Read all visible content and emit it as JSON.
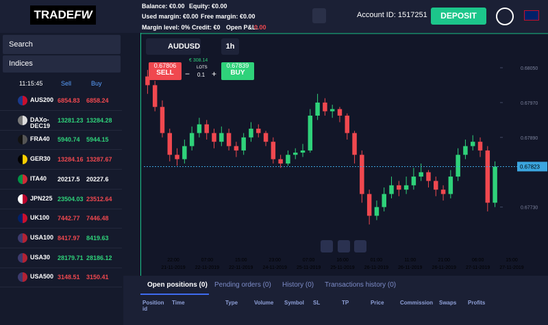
{
  "header": {
    "logo": "TRADE",
    "logo_accent": "FW",
    "balance": "Balance: €0.00",
    "equity": "Equity: €0.00",
    "used_margin": "Used margin: €0.00",
    "free_margin": "Free margin: €0.00",
    "margin_level": "Margin level: 0%",
    "credit": "Credit: €0",
    "open_pl": "Open P&L:",
    "open_pl_value": "0.00",
    "account": "Account ID: 1517251",
    "deposit": "DEPOSIT"
  },
  "sidebar": {
    "search": "Search",
    "category": "Indices",
    "clock": "11:15:45",
    "sell": "Sell",
    "buy": "Buy",
    "instruments": [
      {
        "name": "AUS200",
        "sell": "6854.83",
        "buy": "6858.24",
        "sell_color": "#f0484f",
        "buy_color": "#f0484f",
        "flag": [
          "#1a3a8c",
          "#c8102e"
        ]
      },
      {
        "name": "DAXo-DEC19",
        "sell": "13281.23",
        "buy": "13284.28",
        "sell_color": "#2fd27a",
        "buy_color": "#2fd27a",
        "flag": [
          "#777",
          "#ddd"
        ]
      },
      {
        "name": "FRA40",
        "sell": "5940.74",
        "buy": "5944.15",
        "sell_color": "#2fd27a",
        "buy_color": "#2fd27a",
        "flag": [
          "#111",
          "#555"
        ]
      },
      {
        "name": "GER30",
        "sell": "13284.16",
        "buy": "13287.67",
        "sell_color": "#f0484f",
        "buy_color": "#f0484f",
        "flag": [
          "#000",
          "#ffce00"
        ]
      },
      {
        "name": "ITA40",
        "sell": "20217.5",
        "buy": "20227.6",
        "sell_color": "#ffffff",
        "buy_color": "#ffffff",
        "flag": [
          "#009246",
          "#ce2b37"
        ]
      },
      {
        "name": "JPN225",
        "sell": "23504.03",
        "buy": "23512.64",
        "sell_color": "#2fd27a",
        "buy_color": "#f0484f",
        "flag": [
          "#ffffff",
          "#bc002d"
        ]
      },
      {
        "name": "UK100",
        "sell": "7442.77",
        "buy": "7446.48",
        "sell_color": "#f0484f",
        "buy_color": "#f0484f",
        "flag": [
          "#012169",
          "#c8102e"
        ]
      },
      {
        "name": "USA100",
        "sell": "8417.97",
        "buy": "8419.63",
        "sell_color": "#f0484f",
        "buy_color": "#2fd27a",
        "flag": [
          "#3c3b6e",
          "#b22234"
        ]
      },
      {
        "name": "USA30",
        "sell": "28179.71",
        "buy": "28186.12",
        "sell_color": "#2fd27a",
        "buy_color": "#2fd27a",
        "flag": [
          "#3c3b6e",
          "#b22234"
        ]
      },
      {
        "name": "USA500",
        "sell": "3148.51",
        "buy": "3150.41",
        "sell_color": "#f0484f",
        "buy_color": "#f0484f",
        "flag": [
          "#3c3b6e",
          "#b22234"
        ]
      }
    ]
  },
  "toolbar": {
    "symbol": "AUDUSD",
    "timeframe": "1h",
    "sell_price": "0.67806",
    "sell": "SELL",
    "margin": "€ 308.14",
    "lots": "LOTS",
    "lot_value": "0.1",
    "buy_price": "0.67839",
    "buy": "BUY"
  },
  "chart_data": {
    "type": "candlestick",
    "up_color": "#2fd27a",
    "down_color": "#f0484f",
    "ylim": [
      0.67621,
      0.68127
    ],
    "yticks": [
      {
        "value": 0.6805,
        "label": "0.68050"
      },
      {
        "value": 0.6797,
        "label": "0.67970"
      },
      {
        "value": 0.6789,
        "label": "0.67890"
      },
      {
        "value": 0.6773,
        "label": "0.67730"
      }
    ],
    "current": 0.67823,
    "x": [
      {
        "time": "22:00",
        "date": "21-11-2019"
      },
      {
        "time": "07:00",
        "date": "22-11-2019"
      },
      {
        "time": "15:00",
        "date": "22-11-2019"
      },
      {
        "time": "23:00",
        "date": "24-11-2019"
      },
      {
        "time": "07:00",
        "date": "25-11-2019"
      },
      {
        "time": "16:00",
        "date": "25-11-2019"
      },
      {
        "time": "01:00",
        "date": "26-11-2019"
      },
      {
        "time": "11:00",
        "date": "26-11-2019"
      },
      {
        "time": "21:00",
        "date": "26-11-2019"
      },
      {
        "time": "06:00",
        "date": "27-11-2019"
      },
      {
        "time": "15:00",
        "date": "27-11-2019"
      }
    ],
    "candles": [
      [
        0.6803,
        0.68045,
        0.6799,
        0.6801
      ],
      [
        0.6801,
        0.6802,
        0.6795,
        0.6796
      ],
      [
        0.6796,
        0.67975,
        0.6789,
        0.679
      ],
      [
        0.679,
        0.6791,
        0.67835,
        0.6785
      ],
      [
        0.6785,
        0.67865,
        0.67825,
        0.6784
      ],
      [
        0.6784,
        0.67885,
        0.6783,
        0.6787
      ],
      [
        0.6787,
        0.67915,
        0.6786,
        0.679
      ],
      [
        0.679,
        0.67935,
        0.6789,
        0.6792
      ],
      [
        0.6792,
        0.6793,
        0.67885,
        0.679
      ],
      [
        0.679,
        0.6791,
        0.67865,
        0.6788
      ],
      [
        0.6788,
        0.67915,
        0.6787,
        0.679
      ],
      [
        0.679,
        0.6791,
        0.6786,
        0.6787
      ],
      [
        0.6787,
        0.6788,
        0.67845,
        0.6786
      ],
      [
        0.6786,
        0.679,
        0.6785,
        0.6789
      ],
      [
        0.6789,
        0.67925,
        0.6788,
        0.6791
      ],
      [
        0.6791,
        0.6792,
        0.6789,
        0.679
      ],
      [
        0.679,
        0.67905,
        0.6787,
        0.6788
      ],
      [
        0.6788,
        0.6789,
        0.6783,
        0.6784
      ],
      [
        0.6784,
        0.6785,
        0.6782,
        0.6783
      ],
      [
        0.6783,
        0.6786,
        0.67825,
        0.6785
      ],
      [
        0.6785,
        0.67865,
        0.6784,
        0.67855
      ],
      [
        0.67855,
        0.67875,
        0.67845,
        0.6786
      ],
      [
        0.6786,
        0.67955,
        0.67855,
        0.6794
      ],
      [
        0.6794,
        0.6799,
        0.6793,
        0.6797
      ],
      [
        0.6797,
        0.6798,
        0.6794,
        0.6795
      ],
      [
        0.6795,
        0.67965,
        0.67935,
        0.67955
      ],
      [
        0.67955,
        0.6796,
        0.67925,
        0.6794
      ],
      [
        0.6794,
        0.67945,
        0.67885,
        0.679
      ],
      [
        0.679,
        0.67905,
        0.6783,
        0.6785
      ],
      [
        0.6785,
        0.6786,
        0.6774,
        0.6776
      ],
      [
        0.6776,
        0.6777,
        0.6769,
        0.6771
      ],
      [
        0.6771,
        0.67745,
        0.677,
        0.6773
      ],
      [
        0.6773,
        0.67775,
        0.6772,
        0.6776
      ],
      [
        0.6776,
        0.678,
        0.6775,
        0.6778
      ],
      [
        0.6778,
        0.6779,
        0.67755,
        0.6777
      ],
      [
        0.6777,
        0.678,
        0.6776,
        0.6778
      ],
      [
        0.6778,
        0.6782,
        0.6777,
        0.678
      ],
      [
        0.678,
        0.6783,
        0.6779,
        0.6781
      ],
      [
        0.6781,
        0.67815,
        0.67775,
        0.6779
      ],
      [
        0.6779,
        0.678,
        0.67755,
        0.6777
      ],
      [
        0.6777,
        0.6778,
        0.67745,
        0.6776
      ],
      [
        0.6776,
        0.67815,
        0.6775,
        0.678
      ],
      [
        0.678,
        0.67865,
        0.6779,
        0.6785
      ],
      [
        0.6785,
        0.67885,
        0.6784,
        0.6787
      ],
      [
        0.6787,
        0.67895,
        0.6786,
        0.6788
      ],
      [
        0.6788,
        0.6789,
        0.67845,
        0.6786
      ],
      [
        0.6786,
        0.6787,
        0.6772,
        0.6774
      ],
      [
        0.6774,
        0.67835,
        0.6773,
        0.67823
      ]
    ]
  },
  "positions": {
    "tabs": [
      "Open positions (0)",
      "Pending orders (0)",
      "History (0)",
      "Transactions history (0)"
    ],
    "columns": [
      "Position id",
      "Time",
      "Type",
      "Volume",
      "Symbol",
      "SL",
      "TP",
      "Price",
      "Commission",
      "Swaps",
      "Profits"
    ]
  }
}
